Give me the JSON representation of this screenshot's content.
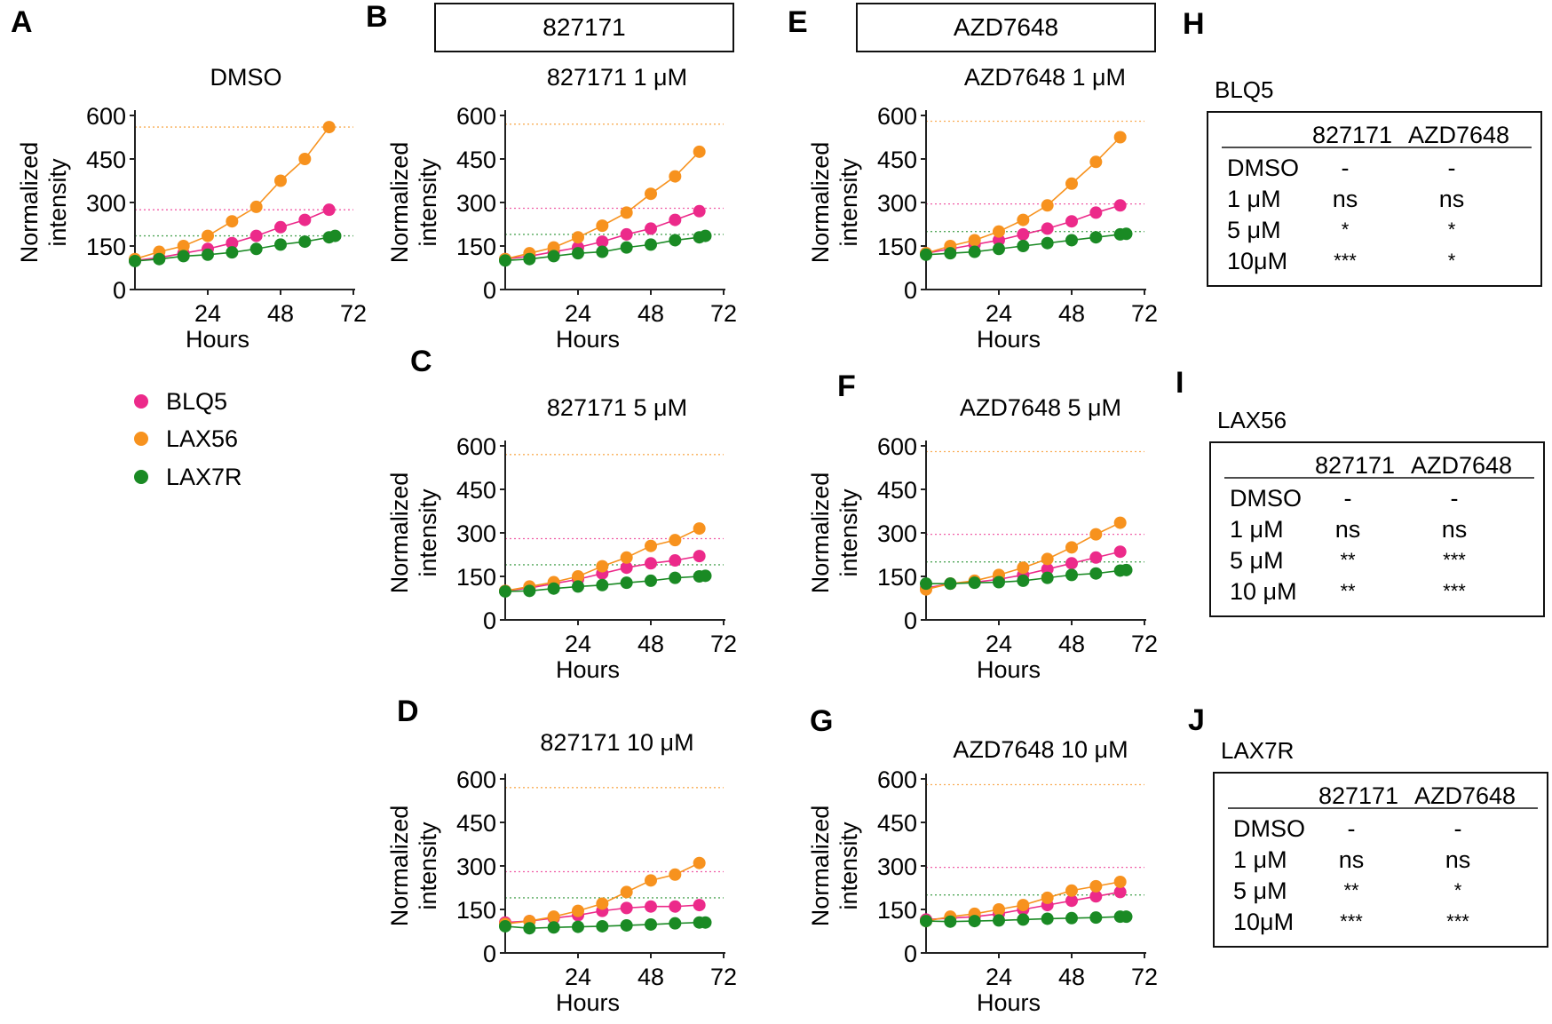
{
  "colors": {
    "BLQ5": "#ec2a8a",
    "LAX56": "#f7921e",
    "LAX7R": "#1a8a24",
    "axis": "#222222"
  },
  "drug_labels": {
    "drug1": "827171",
    "drug2": "AZD7648"
  },
  "legend": [
    {
      "name": "BLQ5",
      "color": "#ec2a8a"
    },
    {
      "name": "LAX56",
      "color": "#f7921e"
    },
    {
      "name": "LAX7R",
      "color": "#1a8a24"
    }
  ],
  "chart_data": [
    {
      "letter": "A",
      "type": "line",
      "title": "DMSO",
      "xlabel": "Hours",
      "ylabel": "Normalized intensity",
      "xlim": [
        0,
        72
      ],
      "ylim": [
        0,
        600
      ],
      "xticks": [
        24,
        48,
        72
      ],
      "yticks": [
        0,
        150,
        300,
        450,
        600
      ],
      "x": [
        0,
        8,
        16,
        24,
        32,
        40,
        48,
        56,
        64,
        66
      ],
      "series": [
        {
          "name": "BLQ5",
          "values": [
            100,
            110,
            125,
            140,
            160,
            185,
            215,
            240,
            275,
            null
          ]
        },
        {
          "name": "LAX56",
          "values": [
            105,
            130,
            150,
            185,
            235,
            285,
            375,
            450,
            560,
            null
          ]
        },
        {
          "name": "LAX7R",
          "values": [
            98,
            105,
            115,
            120,
            128,
            140,
            155,
            165,
            180,
            185
          ]
        }
      ],
      "ref_lines": [
        {
          "series": "LAX56",
          "y": 560
        },
        {
          "series": "BLQ5",
          "y": 275
        },
        {
          "series": "LAX7R",
          "y": 185
        }
      ]
    },
    {
      "letter": "B",
      "type": "line",
      "title": "827171 1 μM",
      "xlabel": "Hours",
      "ylabel": "Normalized intensity",
      "xlim": [
        0,
        72
      ],
      "ylim": [
        0,
        600
      ],
      "xticks": [
        24,
        48,
        72
      ],
      "yticks": [
        0,
        150,
        300,
        450,
        600
      ],
      "x": [
        0,
        8,
        16,
        24,
        32,
        40,
        48,
        56,
        64,
        66
      ],
      "series": [
        {
          "name": "BLQ5",
          "values": [
            105,
            115,
            130,
            145,
            165,
            190,
            210,
            240,
            270,
            null
          ]
        },
        {
          "name": "LAX56",
          "values": [
            105,
            125,
            145,
            180,
            220,
            265,
            330,
            390,
            475,
            null
          ]
        },
        {
          "name": "LAX7R",
          "values": [
            100,
            105,
            115,
            125,
            130,
            145,
            155,
            170,
            180,
            185
          ]
        }
      ],
      "ref_lines": [
        {
          "series": "LAX56",
          "y": 570
        },
        {
          "series": "BLQ5",
          "y": 280
        },
        {
          "series": "LAX7R",
          "y": 190
        }
      ]
    },
    {
      "letter": "C",
      "type": "line",
      "title": "827171 5 μM",
      "xlabel": "Hours",
      "ylabel": "Normalized intensity",
      "xlim": [
        0,
        72
      ],
      "ylim": [
        0,
        600
      ],
      "xticks": [
        24,
        48,
        72
      ],
      "yticks": [
        0,
        150,
        300,
        450,
        600
      ],
      "x": [
        0,
        8,
        16,
        24,
        32,
        40,
        48,
        56,
        64,
        66
      ],
      "series": [
        {
          "name": "BLQ5",
          "values": [
            100,
            110,
            125,
            140,
            160,
            180,
            195,
            205,
            220,
            null
          ]
        },
        {
          "name": "LAX56",
          "values": [
            100,
            115,
            130,
            150,
            185,
            215,
            255,
            275,
            315,
            null
          ]
        },
        {
          "name": "LAX7R",
          "values": [
            98,
            100,
            108,
            115,
            120,
            128,
            135,
            145,
            150,
            152
          ]
        }
      ],
      "ref_lines": [
        {
          "series": "LAX56",
          "y": 570
        },
        {
          "series": "BLQ5",
          "y": 280
        },
        {
          "series": "LAX7R",
          "y": 190
        }
      ]
    },
    {
      "letter": "D",
      "type": "line",
      "title": "827171 10 μM",
      "xlabel": "Hours",
      "ylabel": "Normalized intensity",
      "xlim": [
        0,
        72
      ],
      "ylim": [
        0,
        600
      ],
      "xticks": [
        24,
        48,
        72
      ],
      "yticks": [
        0,
        150,
        300,
        450,
        600
      ],
      "x": [
        0,
        8,
        16,
        24,
        32,
        40,
        48,
        56,
        64,
        66
      ],
      "series": [
        {
          "name": "BLQ5",
          "values": [
            105,
            110,
            120,
            130,
            145,
            155,
            160,
            160,
            165,
            null
          ]
        },
        {
          "name": "LAX56",
          "values": [
            100,
            110,
            125,
            145,
            170,
            210,
            250,
            270,
            310,
            null
          ]
        },
        {
          "name": "LAX7R",
          "values": [
            92,
            85,
            88,
            90,
            92,
            95,
            98,
            102,
            105,
            105
          ]
        }
      ],
      "ref_lines": [
        {
          "series": "LAX56",
          "y": 570
        },
        {
          "series": "BLQ5",
          "y": 280
        },
        {
          "series": "LAX7R",
          "y": 190
        }
      ]
    },
    {
      "letter": "E",
      "type": "line",
      "title": "AZD7648 1 μM",
      "xlabel": "Hours",
      "ylabel": "Normalized intensity",
      "xlim": [
        0,
        72
      ],
      "ylim": [
        0,
        600
      ],
      "xticks": [
        24,
        48,
        72
      ],
      "yticks": [
        0,
        150,
        300,
        450,
        600
      ],
      "x": [
        0,
        8,
        16,
        24,
        32,
        40,
        48,
        56,
        64,
        66
      ],
      "series": [
        {
          "name": "BLQ5",
          "values": [
            125,
            140,
            155,
            170,
            190,
            210,
            235,
            265,
            290,
            null
          ]
        },
        {
          "name": "LAX56",
          "values": [
            125,
            150,
            170,
            200,
            240,
            290,
            365,
            440,
            525,
            null
          ]
        },
        {
          "name": "LAX7R",
          "values": [
            120,
            125,
            130,
            140,
            150,
            160,
            170,
            180,
            190,
            192
          ]
        }
      ],
      "ref_lines": [
        {
          "series": "LAX56",
          "y": 580
        },
        {
          "series": "BLQ5",
          "y": 295
        },
        {
          "series": "LAX7R",
          "y": 200
        }
      ]
    },
    {
      "letter": "F",
      "type": "line",
      "title": "AZD7648 5 μM",
      "xlabel": "Hours",
      "ylabel": "Normalized intensity",
      "xlim": [
        0,
        72
      ],
      "ylim": [
        0,
        600
      ],
      "xticks": [
        24,
        48,
        72
      ],
      "yticks": [
        0,
        150,
        300,
        450,
        600
      ],
      "x": [
        0,
        8,
        16,
        24,
        32,
        40,
        48,
        56,
        64,
        66
      ],
      "series": [
        {
          "name": "BLQ5",
          "values": [
            110,
            125,
            130,
            140,
            155,
            175,
            195,
            215,
            235,
            null
          ]
        },
        {
          "name": "LAX56",
          "values": [
            105,
            125,
            135,
            155,
            180,
            210,
            250,
            295,
            335,
            null
          ]
        },
        {
          "name": "LAX7R",
          "values": [
            125,
            125,
            128,
            130,
            135,
            145,
            155,
            160,
            170,
            172
          ]
        }
      ],
      "ref_lines": [
        {
          "series": "LAX56",
          "y": 580
        },
        {
          "series": "BLQ5",
          "y": 295
        },
        {
          "series": "LAX7R",
          "y": 200
        }
      ]
    },
    {
      "letter": "G",
      "type": "line",
      "title": "AZD7648 10 μM",
      "xlabel": "Hours",
      "ylabel": "Normalized intensity",
      "xlim": [
        0,
        72
      ],
      "ylim": [
        0,
        600
      ],
      "xticks": [
        24,
        48,
        72
      ],
      "yticks": [
        0,
        150,
        300,
        450,
        600
      ],
      "x": [
        0,
        8,
        16,
        24,
        32,
        40,
        48,
        56,
        64,
        66
      ],
      "series": [
        {
          "name": "BLQ5",
          "values": [
            115,
            120,
            125,
            135,
            150,
            165,
            180,
            195,
            210,
            null
          ]
        },
        {
          "name": "LAX56",
          "values": [
            110,
            125,
            135,
            150,
            165,
            190,
            215,
            230,
            245,
            null
          ]
        },
        {
          "name": "LAX7R",
          "values": [
            110,
            108,
            110,
            112,
            115,
            118,
            120,
            122,
            125,
            125
          ]
        }
      ],
      "ref_lines": [
        {
          "series": "LAX56",
          "y": 580
        },
        {
          "series": "BLQ5",
          "y": 295
        },
        {
          "series": "LAX7R",
          "y": 200
        }
      ]
    }
  ],
  "tables": [
    {
      "letter": "H",
      "title": "BLQ5",
      "columns": [
        "827171",
        "AZD7648"
      ],
      "rows": [
        {
          "label": "DMSO",
          "values": [
            "-",
            "-"
          ]
        },
        {
          "label": "1  μM",
          "values": [
            "ns",
            "ns"
          ]
        },
        {
          "label": "5  μM",
          "values": [
            "*",
            "*"
          ]
        },
        {
          "label": "10μM",
          "values": [
            "***",
            "*"
          ]
        }
      ]
    },
    {
      "letter": "I",
      "title": "LAX56",
      "columns": [
        "827171",
        "AZD7648"
      ],
      "rows": [
        {
          "label": "DMSO",
          "values": [
            "-",
            "-"
          ]
        },
        {
          "label": "1  μM",
          "values": [
            "ns",
            "ns"
          ]
        },
        {
          "label": "5  μM",
          "values": [
            "**",
            "***"
          ]
        },
        {
          "label": "10 μM",
          "values": [
            "**",
            "***"
          ]
        }
      ]
    },
    {
      "letter": "J",
      "title": "LAX7R",
      "columns": [
        "827171",
        "AZD7648"
      ],
      "rows": [
        {
          "label": "DMSO",
          "values": [
            "-",
            "-"
          ]
        },
        {
          "label": "1  μM",
          "values": [
            "ns",
            "ns"
          ]
        },
        {
          "label": "5  μM",
          "values": [
            "**",
            "*"
          ]
        },
        {
          "label": "10μM",
          "values": [
            "***",
            "***"
          ]
        }
      ]
    }
  ]
}
